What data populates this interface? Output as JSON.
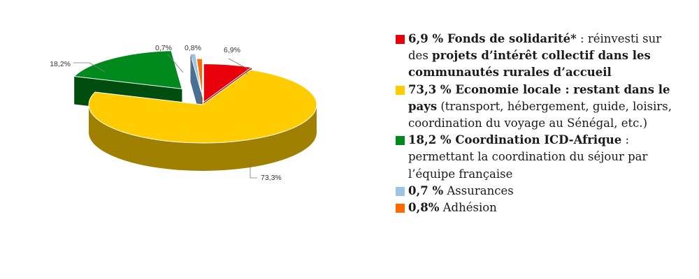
{
  "chart_data": {
    "type": "pie",
    "style": "3d-exploded",
    "slices": [
      {
        "key": "solidarite",
        "value": 6.9,
        "label": "6,9%",
        "color": "#e8000b",
        "side_color": "#8a0008"
      },
      {
        "key": "economie",
        "value": 73.3,
        "label": "73,3%",
        "color": "#ffcc00",
        "side_color": "#a08000"
      },
      {
        "key": "coordination",
        "value": 18.2,
        "label": "18,2%",
        "color": "#008a1e",
        "side_color": "#004d10"
      },
      {
        "key": "assurances",
        "value": 0.7,
        "label": "0,7%",
        "color": "#9dc3e6",
        "side_color": "#4a6f93"
      },
      {
        "key": "adhesion",
        "value": 0.8,
        "label": "0,8%",
        "color": "#ff6a00",
        "side_color": "#9a3f00"
      }
    ]
  },
  "legend": [
    {
      "key": "solidarite",
      "color": "#e8000b",
      "parts": [
        {
          "t": "6,9 % Fonds de solidarité*",
          "b": true
        },
        {
          "t": " : réinvesti sur des ",
          "b": false
        },
        {
          "t": "projets d’intérêt collectif dans les communautés rurales d’accueil",
          "b": true
        }
      ]
    },
    {
      "key": "economie",
      "color": "#ffcc00",
      "parts": [
        {
          "t": "73,3 % Economie locale : restant dans le pays",
          "b": true
        },
        {
          "t": " (transport, hébergement, guide, loisirs, coordination du voyage au Sénégal, etc.)",
          "b": false
        }
      ]
    },
    {
      "key": "coordination",
      "color": "#008a1e",
      "parts": [
        {
          "t": "18,2 % Coordination ICD-Afrique",
          "b": true
        },
        {
          "t": " : permettant la coordination du séjour par l’équipe française",
          "b": false
        }
      ]
    },
    {
      "key": "assurances",
      "color": "#9dc3e6",
      "parts": [
        {
          "t": "0,7 %",
          "b": true
        },
        {
          "t": " Assurances",
          "b": false
        }
      ]
    },
    {
      "key": "adhesion",
      "color": "#ff6a00",
      "parts": [
        {
          "t": "0,8%",
          "b": true
        },
        {
          "t": " Adhésion",
          "b": false
        }
      ]
    }
  ]
}
